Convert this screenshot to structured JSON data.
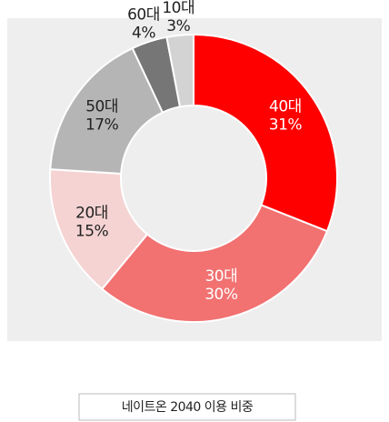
{
  "chart_data": {
    "type": "donut",
    "title": "네이트온 2040 이용 비중",
    "categories": [
      "40대",
      "30대",
      "20대",
      "50대",
      "60대",
      "10대"
    ],
    "values": [
      31,
      30,
      15,
      17,
      4,
      3
    ],
    "value_labels": [
      "31%",
      "30%",
      "15%",
      "17%",
      "4%",
      "3%"
    ],
    "colors": [
      "#ff0000",
      "#f27171",
      "#f5d3d3",
      "#b5b5b5",
      "#767676",
      "#d3d3d3"
    ]
  }
}
